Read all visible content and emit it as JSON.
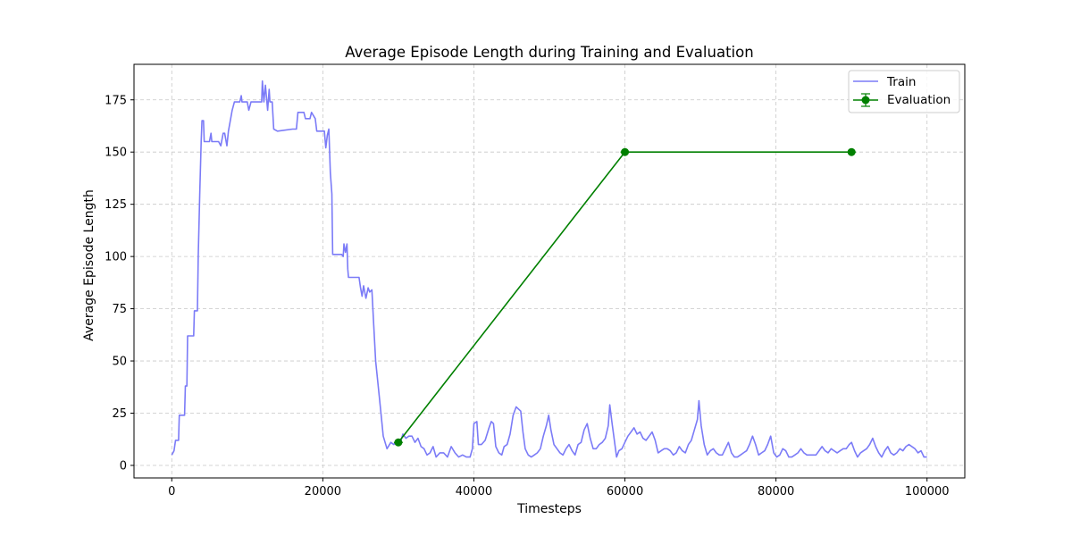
{
  "chart_data": {
    "type": "line",
    "title": "Average Episode Length during Training and Evaluation",
    "xlabel": "Timesteps",
    "ylabel": "Average Episode Length",
    "xlim": [
      -5000,
      105000
    ],
    "ylim": [
      -6,
      192
    ],
    "xticks": [
      0,
      20000,
      40000,
      60000,
      80000,
      100000
    ],
    "yticks": [
      0,
      25,
      50,
      75,
      100,
      125,
      150,
      175
    ],
    "grid": true,
    "legend_position": "top-right",
    "series": [
      {
        "name": "Train",
        "kind": "line",
        "color": "#7b7bf7",
        "points": [
          [
            0,
            5
          ],
          [
            300,
            7
          ],
          [
            500,
            12
          ],
          [
            900,
            12
          ],
          [
            1000,
            24
          ],
          [
            1700,
            24
          ],
          [
            1800,
            38
          ],
          [
            2000,
            38
          ],
          [
            2100,
            62
          ],
          [
            2900,
            62
          ],
          [
            3000,
            74
          ],
          [
            3400,
            74
          ],
          [
            3500,
            100
          ],
          [
            3700,
            130
          ],
          [
            3900,
            155
          ],
          [
            4000,
            165
          ],
          [
            4200,
            165
          ],
          [
            4300,
            155
          ],
          [
            5000,
            155
          ],
          [
            5200,
            159
          ],
          [
            5300,
            155
          ],
          [
            6200,
            155
          ],
          [
            6500,
            153
          ],
          [
            6800,
            159
          ],
          [
            7000,
            159
          ],
          [
            7300,
            153
          ],
          [
            7500,
            160
          ],
          [
            8000,
            170
          ],
          [
            8300,
            174
          ],
          [
            9000,
            174
          ],
          [
            9200,
            177
          ],
          [
            9300,
            174
          ],
          [
            10000,
            174
          ],
          [
            10200,
            170
          ],
          [
            10500,
            174
          ],
          [
            11500,
            174
          ],
          [
            11900,
            174
          ],
          [
            12000,
            184
          ],
          [
            12200,
            174
          ],
          [
            12400,
            182
          ],
          [
            12700,
            170
          ],
          [
            12900,
            180
          ],
          [
            13000,
            174
          ],
          [
            13300,
            174
          ],
          [
            13500,
            161
          ],
          [
            14000,
            160
          ],
          [
            16000,
            161
          ],
          [
            16500,
            161
          ],
          [
            16700,
            169
          ],
          [
            17500,
            169
          ],
          [
            17700,
            166
          ],
          [
            18300,
            166
          ],
          [
            18500,
            169
          ],
          [
            19000,
            166
          ],
          [
            19200,
            160
          ],
          [
            20200,
            160
          ],
          [
            20400,
            152
          ],
          [
            20600,
            158
          ],
          [
            20800,
            161
          ],
          [
            21000,
            140
          ],
          [
            21200,
            130
          ],
          [
            21300,
            101
          ],
          [
            22500,
            101
          ],
          [
            22700,
            100
          ],
          [
            22800,
            106
          ],
          [
            23000,
            102
          ],
          [
            23200,
            106
          ],
          [
            23300,
            94
          ],
          [
            23400,
            90
          ],
          [
            24800,
            90
          ],
          [
            25000,
            85
          ],
          [
            25200,
            81
          ],
          [
            25400,
            86
          ],
          [
            25700,
            80
          ],
          [
            26000,
            85
          ],
          [
            26200,
            83
          ],
          [
            26500,
            84
          ],
          [
            26700,
            70
          ],
          [
            27000,
            50
          ],
          [
            27500,
            32
          ],
          [
            28000,
            14
          ],
          [
            28500,
            8
          ],
          [
            29000,
            11
          ],
          [
            29400,
            10
          ],
          [
            29800,
            12
          ],
          [
            30200,
            10
          ],
          [
            30600,
            15
          ],
          [
            31000,
            13
          ],
          [
            31400,
            14
          ],
          [
            31800,
            14
          ],
          [
            32200,
            11
          ],
          [
            32600,
            13
          ],
          [
            33000,
            9
          ],
          [
            33400,
            8
          ],
          [
            33800,
            5
          ],
          [
            34200,
            6
          ],
          [
            34600,
            9
          ],
          [
            35000,
            4
          ],
          [
            35500,
            6
          ],
          [
            36000,
            6
          ],
          [
            36500,
            4
          ],
          [
            37000,
            9
          ],
          [
            37500,
            6
          ],
          [
            38000,
            4
          ],
          [
            38500,
            5
          ],
          [
            39000,
            4
          ],
          [
            39500,
            4
          ],
          [
            39800,
            8
          ],
          [
            40000,
            20
          ],
          [
            40400,
            21
          ],
          [
            40600,
            10
          ],
          [
            41000,
            10
          ],
          [
            41500,
            12
          ],
          [
            42000,
            18
          ],
          [
            42300,
            21
          ],
          [
            42600,
            20
          ],
          [
            42900,
            9
          ],
          [
            43300,
            6
          ],
          [
            43700,
            5
          ],
          [
            44000,
            9
          ],
          [
            44400,
            10
          ],
          [
            44800,
            15
          ],
          [
            45200,
            24
          ],
          [
            45600,
            28
          ],
          [
            45900,
            27
          ],
          [
            46200,
            26
          ],
          [
            46500,
            16
          ],
          [
            46800,
            8
          ],
          [
            47200,
            5
          ],
          [
            47600,
            4
          ],
          [
            48000,
            5
          ],
          [
            48400,
            6
          ],
          [
            48800,
            8
          ],
          [
            49200,
            14
          ],
          [
            49600,
            19
          ],
          [
            49900,
            24
          ],
          [
            50200,
            17
          ],
          [
            50600,
            10
          ],
          [
            51000,
            8
          ],
          [
            51400,
            6
          ],
          [
            51800,
            5
          ],
          [
            52200,
            8
          ],
          [
            52600,
            10
          ],
          [
            53000,
            7
          ],
          [
            53400,
            5
          ],
          [
            53800,
            10
          ],
          [
            54200,
            11
          ],
          [
            54600,
            17
          ],
          [
            55000,
            20
          ],
          [
            55400,
            13
          ],
          [
            55800,
            8
          ],
          [
            56200,
            8
          ],
          [
            56600,
            10
          ],
          [
            57000,
            11
          ],
          [
            57400,
            13
          ],
          [
            57800,
            19
          ],
          [
            58000,
            29
          ],
          [
            58300,
            20
          ],
          [
            58600,
            12
          ],
          [
            58900,
            4
          ],
          [
            59200,
            7
          ],
          [
            59600,
            8
          ],
          [
            60000,
            11
          ],
          [
            60400,
            14
          ],
          [
            60800,
            16
          ],
          [
            61200,
            18
          ],
          [
            61600,
            15
          ],
          [
            62000,
            16
          ],
          [
            62400,
            13
          ],
          [
            62800,
            12
          ],
          [
            63200,
            14
          ],
          [
            63600,
            16
          ],
          [
            64000,
            12
          ],
          [
            64400,
            6
          ],
          [
            64800,
            7
          ],
          [
            65200,
            8
          ],
          [
            65600,
            8
          ],
          [
            66000,
            7
          ],
          [
            66400,
            5
          ],
          [
            66800,
            6
          ],
          [
            67200,
            9
          ],
          [
            67600,
            7
          ],
          [
            68000,
            6
          ],
          [
            68400,
            10
          ],
          [
            68800,
            12
          ],
          [
            69200,
            17
          ],
          [
            69600,
            22
          ],
          [
            69800,
            31
          ],
          [
            70100,
            19
          ],
          [
            70500,
            10
          ],
          [
            70900,
            5
          ],
          [
            71300,
            7
          ],
          [
            71700,
            8
          ],
          [
            72100,
            6
          ],
          [
            72500,
            5
          ],
          [
            72900,
            5
          ],
          [
            73300,
            8
          ],
          [
            73700,
            11
          ],
          [
            74100,
            6
          ],
          [
            74500,
            4
          ],
          [
            74900,
            4
          ],
          [
            75300,
            5
          ],
          [
            75700,
            6
          ],
          [
            76100,
            7
          ],
          [
            76500,
            10
          ],
          [
            76900,
            14
          ],
          [
            77300,
            10
          ],
          [
            77700,
            5
          ],
          [
            78100,
            6
          ],
          [
            78500,
            7
          ],
          [
            78900,
            10
          ],
          [
            79300,
            14
          ],
          [
            79700,
            6
          ],
          [
            80100,
            4
          ],
          [
            80500,
            5
          ],
          [
            80900,
            8
          ],
          [
            81300,
            7
          ],
          [
            81700,
            4
          ],
          [
            82100,
            4
          ],
          [
            82500,
            5
          ],
          [
            82900,
            6
          ],
          [
            83300,
            8
          ],
          [
            83700,
            6
          ],
          [
            84100,
            5
          ],
          [
            84500,
            5
          ],
          [
            84900,
            5
          ],
          [
            85300,
            5
          ],
          [
            85700,
            7
          ],
          [
            86100,
            9
          ],
          [
            86500,
            7
          ],
          [
            86900,
            6
          ],
          [
            87300,
            8
          ],
          [
            87700,
            7
          ],
          [
            88100,
            6
          ],
          [
            88500,
            7
          ],
          [
            88900,
            8
          ],
          [
            89300,
            8
          ],
          [
            89700,
            10
          ],
          [
            90000,
            11
          ],
          [
            90400,
            7
          ],
          [
            90800,
            4
          ],
          [
            91200,
            6
          ],
          [
            91600,
            7
          ],
          [
            92000,
            8
          ],
          [
            92400,
            10
          ],
          [
            92800,
            13
          ],
          [
            93200,
            9
          ],
          [
            93600,
            6
          ],
          [
            94000,
            4
          ],
          [
            94400,
            7
          ],
          [
            94800,
            9
          ],
          [
            95200,
            6
          ],
          [
            95600,
            5
          ],
          [
            96000,
            6
          ],
          [
            96400,
            8
          ],
          [
            96800,
            7
          ],
          [
            97200,
            9
          ],
          [
            97600,
            10
          ],
          [
            98000,
            9
          ],
          [
            98400,
            8
          ],
          [
            98800,
            6
          ],
          [
            99200,
            7
          ],
          [
            99600,
            4
          ],
          [
            100000,
            4
          ]
        ]
      },
      {
        "name": "Evaluation",
        "kind": "errorbar",
        "color": "#008000",
        "points": [
          [
            30000,
            11
          ],
          [
            60000,
            150
          ],
          [
            90000,
            150
          ]
        ]
      }
    ]
  }
}
